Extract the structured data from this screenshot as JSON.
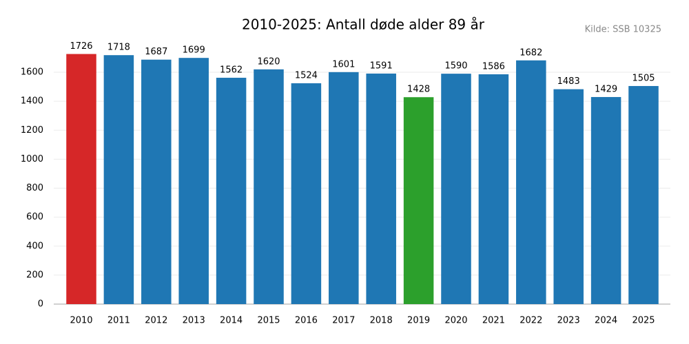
{
  "chart_data": {
    "type": "bar",
    "title": "2010-2025: Antall døde alder 89 år",
    "source": "Kilde: SSB 10325",
    "categories": [
      "2010",
      "2011",
      "2012",
      "2013",
      "2014",
      "2015",
      "2016",
      "2017",
      "2018",
      "2019",
      "2020",
      "2021",
      "2022",
      "2023",
      "2024",
      "2025"
    ],
    "values": [
      1726,
      1718,
      1687,
      1699,
      1562,
      1620,
      1524,
      1601,
      1591,
      1428,
      1590,
      1586,
      1682,
      1483,
      1429,
      1505
    ],
    "colors": [
      "#d62728",
      "#1f77b4",
      "#1f77b4",
      "#1f77b4",
      "#1f77b4",
      "#1f77b4",
      "#1f77b4",
      "#1f77b4",
      "#1f77b4",
      "#2ca02c",
      "#1f77b4",
      "#1f77b4",
      "#1f77b4",
      "#1f77b4",
      "#1f77b4",
      "#1f77b4"
    ],
    "ylim": [
      0,
      1800
    ],
    "yticks": [
      0,
      200,
      400,
      600,
      800,
      1000,
      1200,
      1400,
      1600
    ],
    "grid": true
  }
}
